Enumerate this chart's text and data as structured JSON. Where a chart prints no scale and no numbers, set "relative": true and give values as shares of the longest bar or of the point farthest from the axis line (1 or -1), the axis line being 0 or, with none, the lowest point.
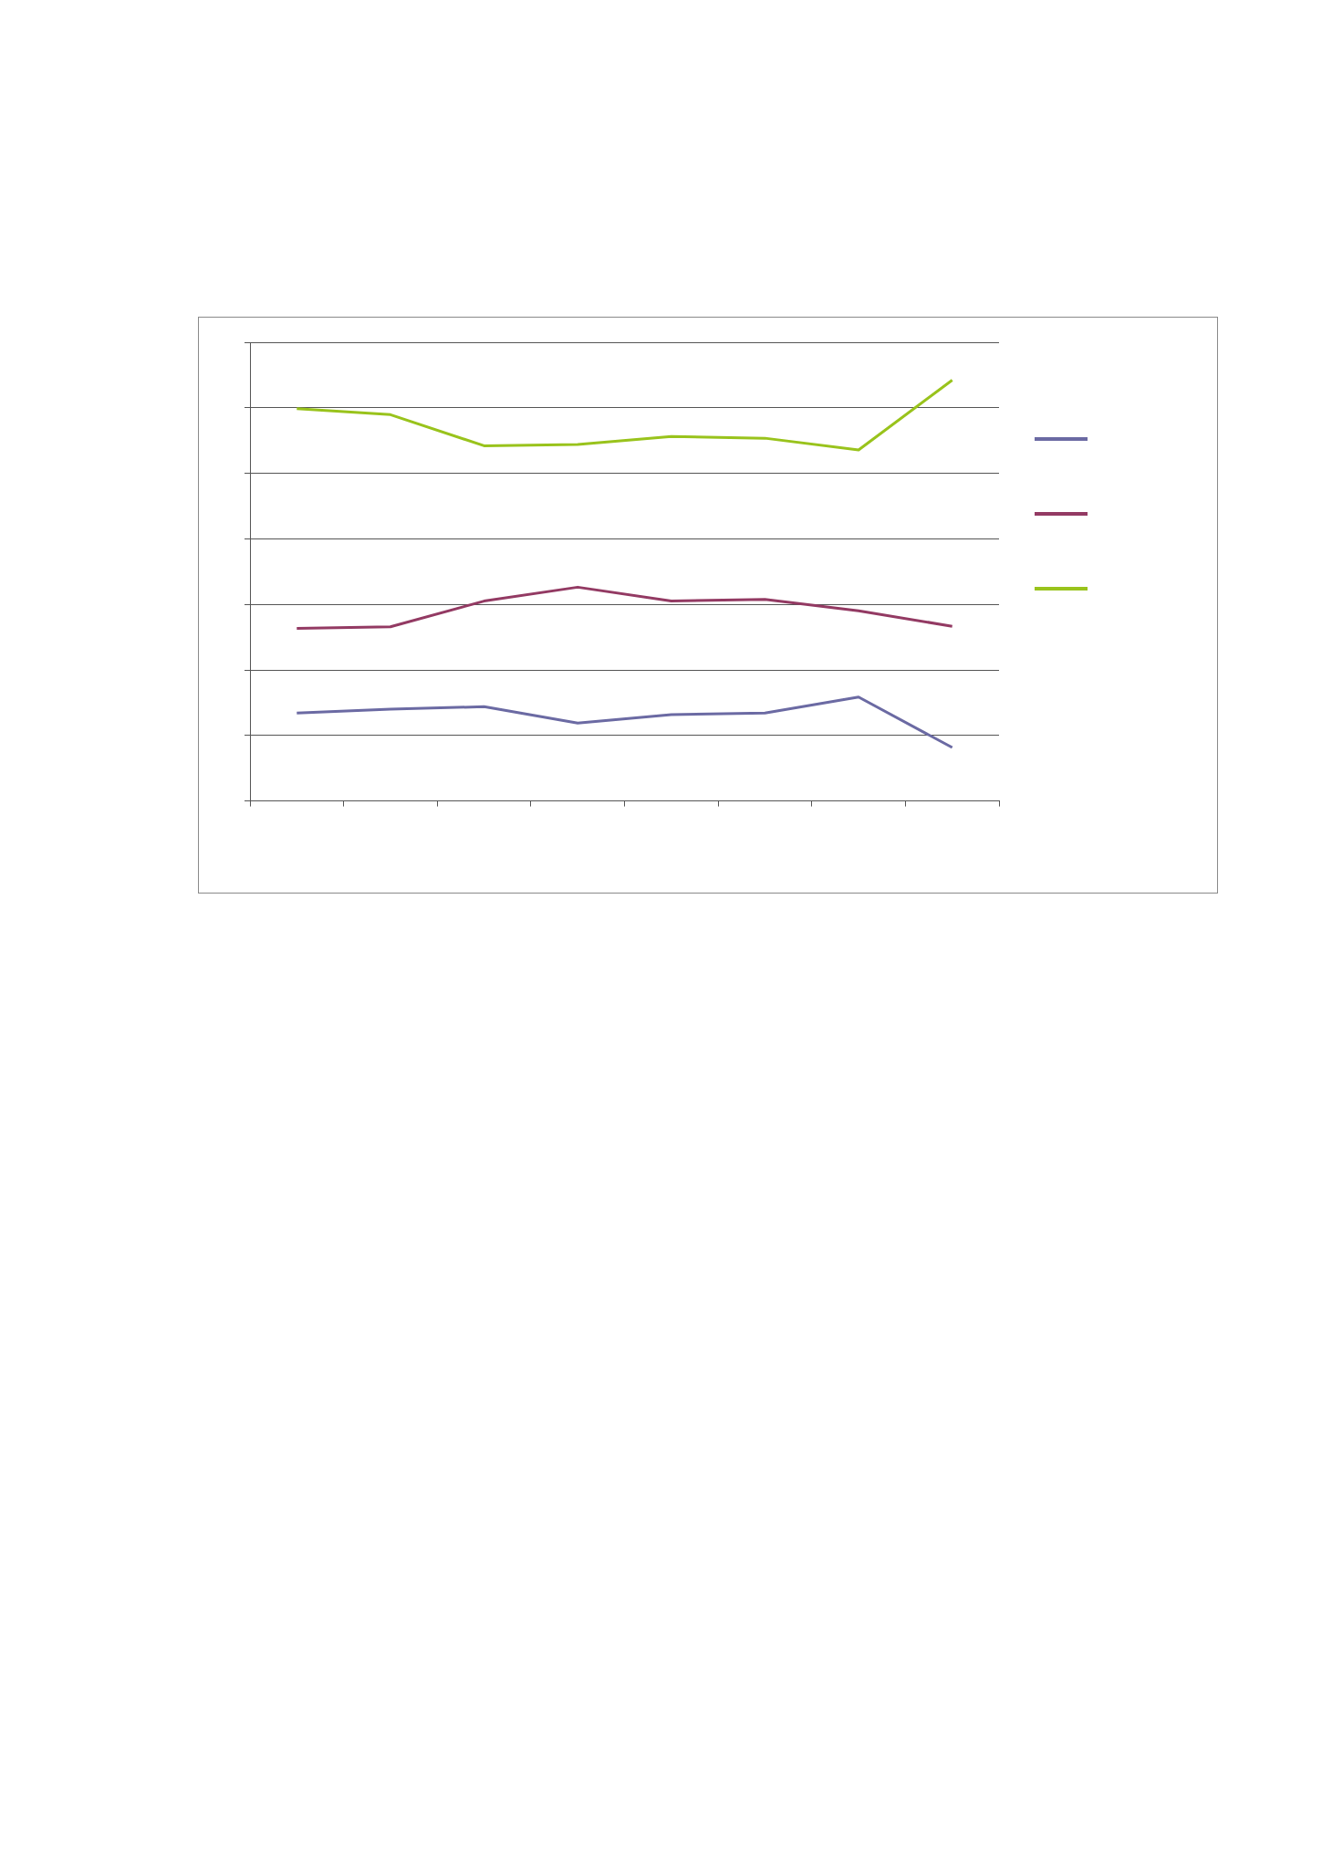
{
  "chart_data": {
    "type": "line",
    "relative": true,
    "categories": [
      null,
      null,
      null,
      null,
      null,
      null,
      null,
      null
    ],
    "grid": "y",
    "series": [
      {
        "color": "#6b6aa3",
        "values": [
          0.209,
          0.218,
          0.224,
          0.185,
          0.205,
          0.209,
          0.247,
          0.127
        ]
      },
      {
        "color": "#933a63",
        "values": [
          0.41,
          0.414,
          0.475,
          0.508,
          0.475,
          0.479,
          0.452,
          0.415
        ]
      },
      {
        "color": "#99c31c",
        "values": [
          0.932,
          0.918,
          0.844,
          0.847,
          0.866,
          0.862,
          0.834,
          1
        ]
      }
    ]
  }
}
